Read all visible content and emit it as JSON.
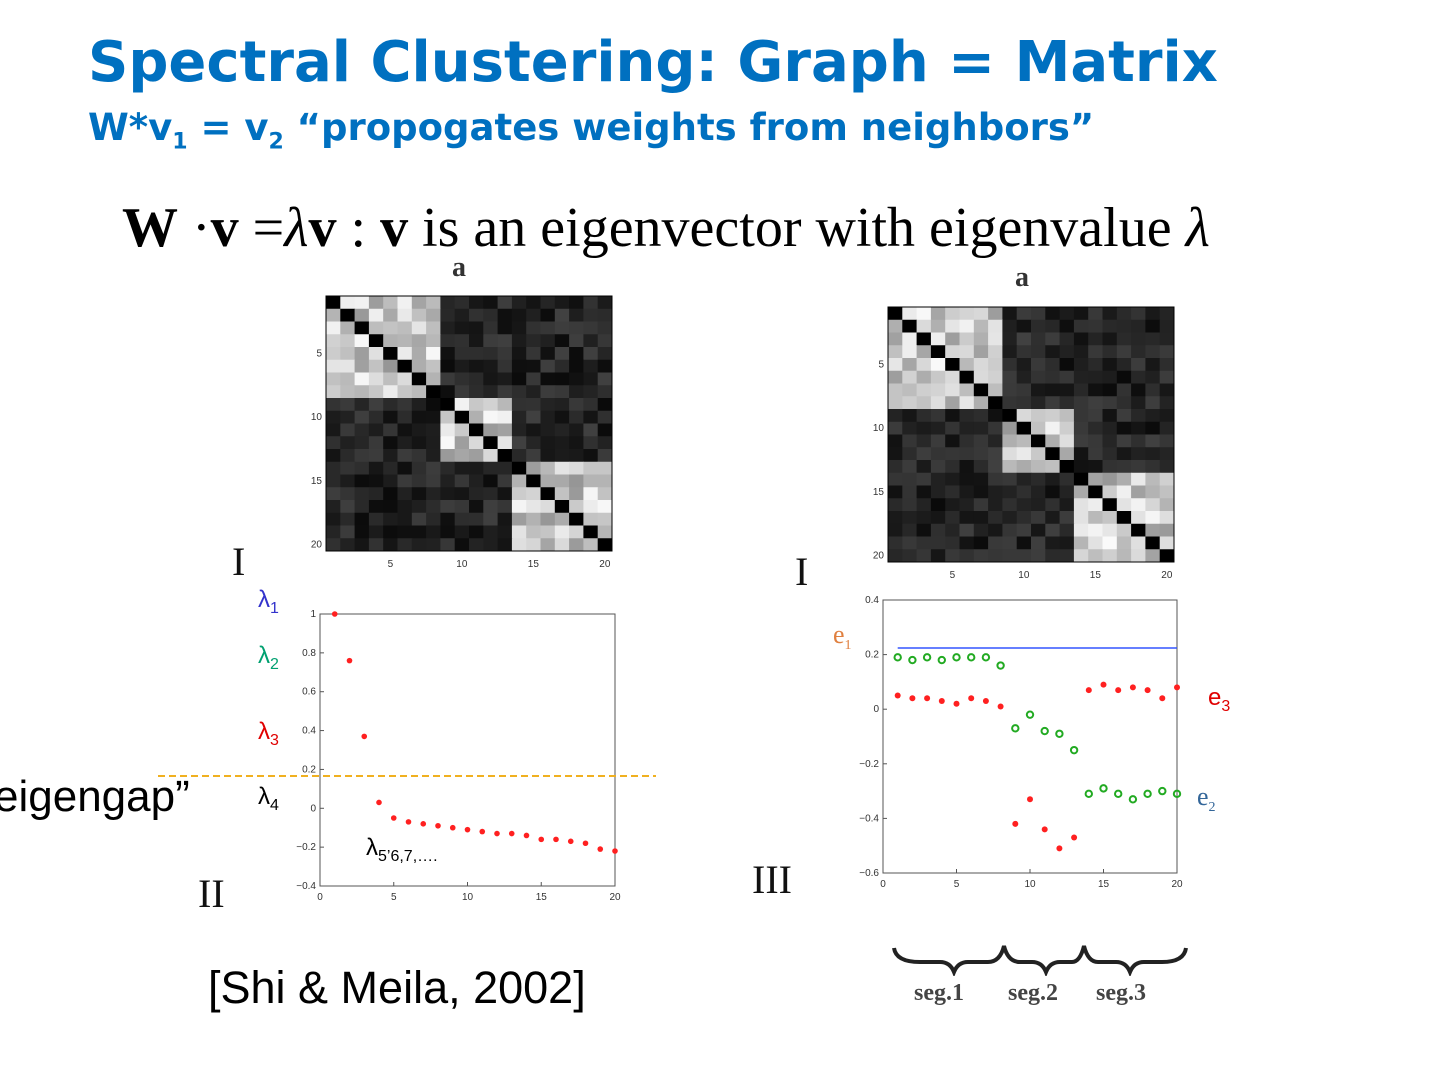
{
  "title": "Spectral Clustering: Graph = Matrix",
  "subtitle": {
    "text_a": "W*v",
    "sub_a": "1",
    "text_b": " = v",
    "sub_b": "2",
    "text_c": " “propogates weights from neighbors”"
  },
  "equation": {
    "W": "W",
    "dot": " ·",
    "v1": "v",
    "eq": " =",
    "lambda1": "λ",
    "v2": "v",
    "colon": " : ",
    "v3": "v",
    "text": " is an eigenvector with eigenvalue ",
    "lambda2": "λ"
  },
  "panel_labels": {
    "a_left": "a",
    "a_right": "a",
    "I_left": "I",
    "I_right": "I",
    "II": "II",
    "III": "III"
  },
  "eigen_labels": {
    "l1": "λ",
    "l1_sub": "1",
    "l2": "λ",
    "l2_sub": "2",
    "l3": "λ",
    "l3_sub": "3",
    "l4": "λ",
    "l4_sub": "4",
    "l5": "λ",
    "l5_sub": "5’6,7,….",
    "e1": "e",
    "e1_sub": "1",
    "e2": "e",
    "e2_sub": "2",
    "e3": "e",
    "e3_sub": "3"
  },
  "eigengap_label": "eigengap”",
  "citation": "[Shi & Meila, 2002]",
  "segments": [
    "seg.1",
    "seg.2",
    "seg.3"
  ],
  "colors": {
    "title": "#0070c0",
    "lambda1": "#3333cc",
    "lambda2": "#00a070",
    "lambda3": "#e00000",
    "e1": "#e08040",
    "e2": "#336699",
    "e3": "#e00000",
    "eigengap_line": "#f0b020",
    "red_points": "#ff2020",
    "green_points": "#22aa22",
    "blue_line": "#3355ff"
  },
  "chart_data": [
    {
      "type": "heatmap",
      "name": "affinity-matrix-left",
      "size": 20,
      "xticks": [
        5,
        10,
        15,
        20
      ],
      "yticks": [
        5,
        10,
        15,
        20
      ],
      "clusters": [
        [
          1,
          8
        ],
        [
          9,
          13
        ],
        [
          14,
          20
        ]
      ]
    },
    {
      "type": "heatmap",
      "name": "affinity-matrix-right",
      "size": 20,
      "xticks": [
        5,
        10,
        15,
        20
      ],
      "yticks": [
        5,
        10,
        15,
        20
      ],
      "clusters": [
        [
          1,
          8
        ],
        [
          9,
          13
        ],
        [
          14,
          20
        ]
      ]
    },
    {
      "type": "scatter",
      "name": "eigenvalues",
      "x": [
        1,
        2,
        3,
        4,
        5,
        6,
        7,
        8,
        9,
        10,
        11,
        12,
        13,
        14,
        15,
        16,
        17,
        18,
        19,
        20
      ],
      "y": [
        1.0,
        0.76,
        0.37,
        0.03,
        -0.05,
        -0.07,
        -0.08,
        -0.09,
        -0.1,
        -0.11,
        -0.12,
        -0.13,
        -0.13,
        -0.14,
        -0.16,
        -0.16,
        -0.17,
        -0.18,
        -0.21,
        -0.22
      ],
      "xlim": [
        0,
        20
      ],
      "ylim": [
        -0.4,
        1
      ],
      "xticks": [
        0,
        5,
        10,
        15,
        20
      ],
      "yticks": [
        -0.4,
        -0.2,
        0,
        0.2,
        0.4,
        0.6,
        0.8,
        1
      ],
      "ytick_labels": [
        "−0.4",
        "−0.2",
        "0",
        "0.2",
        "0.4",
        "0.6",
        "0.8",
        "1"
      ],
      "eigengap_y": 0.17
    },
    {
      "type": "scatter",
      "name": "eigenvectors",
      "x": [
        1,
        2,
        3,
        4,
        5,
        6,
        7,
        8,
        9,
        10,
        11,
        12,
        13,
        14,
        15,
        16,
        17,
        18,
        19,
        20
      ],
      "series": [
        {
          "key": "e1",
          "style": "line",
          "values": [
            0.224,
            0.224,
            0.224,
            0.224,
            0.224,
            0.224,
            0.224,
            0.224,
            0.224,
            0.224,
            0.224,
            0.224,
            0.224,
            0.224,
            0.224,
            0.224,
            0.224,
            0.224,
            0.224,
            0.224
          ]
        },
        {
          "key": "e2",
          "style": "circle",
          "values": [
            0.19,
            0.18,
            0.19,
            0.18,
            0.19,
            0.19,
            0.19,
            0.16,
            -0.07,
            -0.02,
            -0.08,
            -0.09,
            -0.15,
            -0.31,
            -0.29,
            -0.31,
            -0.33,
            -0.31,
            -0.3,
            -0.31
          ]
        },
        {
          "key": "e3",
          "style": "star",
          "values": [
            0.05,
            0.04,
            0.04,
            0.03,
            0.02,
            0.04,
            0.03,
            0.01,
            -0.42,
            -0.33,
            -0.44,
            -0.51,
            -0.47,
            0.07,
            0.09,
            0.07,
            0.08,
            0.07,
            0.04,
            0.08
          ]
        }
      ],
      "xlim": [
        0,
        20
      ],
      "ylim": [
        -0.6,
        0.4
      ],
      "xticks": [
        0,
        5,
        10,
        15,
        20
      ],
      "yticks": [
        -0.6,
        -0.4,
        -0.2,
        0,
        0.2,
        0.4
      ],
      "ytick_labels": [
        "−0.6",
        "−0.4",
        "−0.2",
        "0",
        "0.2",
        "0.4"
      ]
    }
  ]
}
